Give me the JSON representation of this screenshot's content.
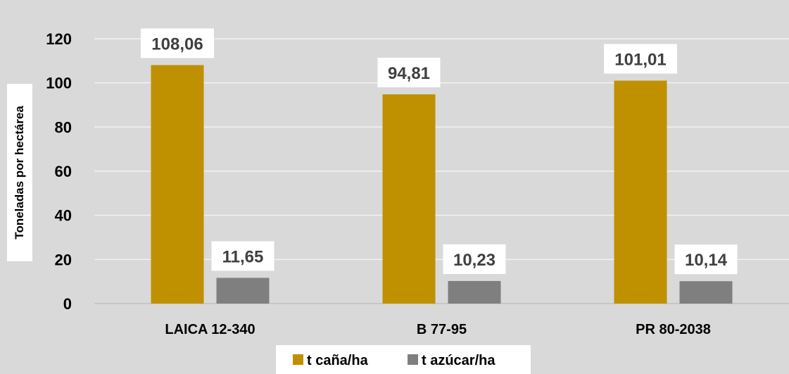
{
  "chart_data": {
    "type": "bar",
    "categories": [
      "LAICA 12-340",
      "B 77-95",
      "PR 80-2038"
    ],
    "series": [
      {
        "name": "t caña/ha",
        "values": [
          108.06,
          94.81,
          101.01
        ],
        "labels": [
          "108,06",
          "94,81",
          "101,01"
        ],
        "color": "#bf9000"
      },
      {
        "name": "t azúcar/ha",
        "values": [
          11.65,
          10.23,
          10.14
        ],
        "labels": [
          "11,65",
          "10,23",
          "10,14"
        ],
        "color": "#7f7f7f"
      }
    ],
    "ylabel": "Toneladas por hectárea",
    "ylim": [
      0,
      120
    ],
    "yticks": [
      0,
      20,
      40,
      60,
      80,
      100,
      120
    ],
    "grid": true,
    "legend": "bottom",
    "background": "#d9d9d9",
    "gridline_color": "#f2f2f2",
    "label_box_color": "#ffffff",
    "text_color": "#000000",
    "data_label_color": "#404040"
  }
}
